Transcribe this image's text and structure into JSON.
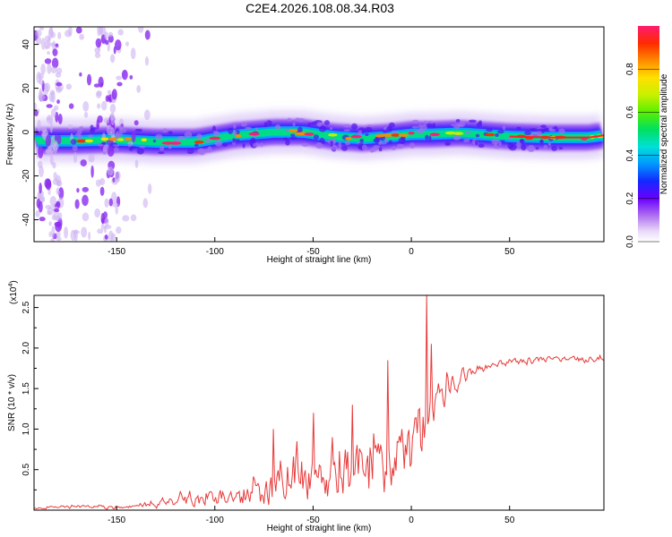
{
  "title": "C2E4.2026.108.08.34.R03",
  "chart_data": [
    {
      "type": "heatmap",
      "title": "C2E4.2026.108.08.34.R03",
      "xlabel": "Height of straight line (km)",
      "ylabel": "Frequency (Hz)",
      "xlim": [
        -192,
        98
      ],
      "ylim": [
        -50,
        48
      ],
      "xticks": [
        -150,
        -100,
        -50,
        0,
        50
      ],
      "yticks": [
        -40,
        -20,
        0,
        20,
        40
      ],
      "ridge": {
        "x": [
          -192,
          -170,
          -150,
          -130,
          -110,
          -90,
          -70,
          -55,
          -40,
          -25,
          -10,
          0,
          10,
          25,
          50,
          70,
          90,
          98
        ],
        "y": [
          -4,
          -4,
          -3.5,
          -4.5,
          -4.5,
          -1.5,
          0,
          0,
          -2,
          -3,
          -2,
          -1,
          -1,
          -0.5,
          -2,
          -2.5,
          -2.5,
          -1.5
        ]
      },
      "colorbar": {
        "label": "Normalized spectral amplitude",
        "range": [
          0,
          1
        ],
        "ticks": [
          0.0,
          0.2,
          0.4,
          0.6,
          0.8
        ]
      }
    },
    {
      "type": "line",
      "xlabel": "Height of straight line (km)",
      "ylabel": "SNR (10 * v/v)",
      "exponent_label": "(x10",
      "exponent_power": "4",
      "exponent_close": ")",
      "xlim": [
        -192,
        98
      ],
      "ylim": [
        0,
        2.65
      ],
      "xticks": [
        -150,
        -100,
        -50,
        0,
        50
      ],
      "yticks": [
        0.5,
        1.0,
        1.5,
        2.0,
        2.5
      ],
      "color": "#e83a3a",
      "envelope": {
        "x": [
          -192,
          -170,
          -150,
          -140,
          -130,
          -120,
          -110,
          -100,
          -90,
          -80,
          -70,
          -60,
          -50,
          -40,
          -30,
          -20,
          -10,
          0,
          5,
          10,
          15,
          20,
          25,
          30,
          40,
          50,
          60,
          70,
          80,
          90,
          98
        ],
        "base": [
          0.02,
          0.05,
          0.03,
          0.04,
          0.08,
          0.12,
          0.12,
          0.15,
          0.18,
          0.2,
          0.25,
          0.3,
          0.35,
          0.4,
          0.5,
          0.55,
          0.7,
          0.9,
          1.05,
          1.2,
          1.35,
          1.5,
          1.65,
          1.72,
          1.8,
          1.82,
          1.85,
          1.86,
          1.87,
          1.86,
          1.86
        ],
        "amp": [
          0.01,
          0.03,
          0.02,
          0.03,
          0.05,
          0.09,
          0.1,
          0.12,
          0.15,
          0.2,
          0.3,
          0.32,
          0.35,
          0.4,
          0.45,
          0.5,
          0.45,
          0.5,
          0.4,
          0.35,
          0.25,
          0.2,
          0.12,
          0.08,
          0.06,
          0.05,
          0.05,
          0.04,
          0.04,
          0.05,
          0.05
        ]
      },
      "spikes": [
        {
          "x": -70,
          "y": 1.0
        },
        {
          "x": -58,
          "y": 0.85
        },
        {
          "x": -50,
          "y": 1.2
        },
        {
          "x": -40,
          "y": 0.9
        },
        {
          "x": -30,
          "y": 1.3
        },
        {
          "x": -25,
          "y": 0.7
        },
        {
          "x": -12,
          "y": 1.85
        },
        {
          "x": -5,
          "y": 1.0
        },
        {
          "x": 8,
          "y": 2.65
        },
        {
          "x": 10,
          "y": 2.05
        },
        {
          "x": 18,
          "y": 1.7
        }
      ]
    }
  ]
}
